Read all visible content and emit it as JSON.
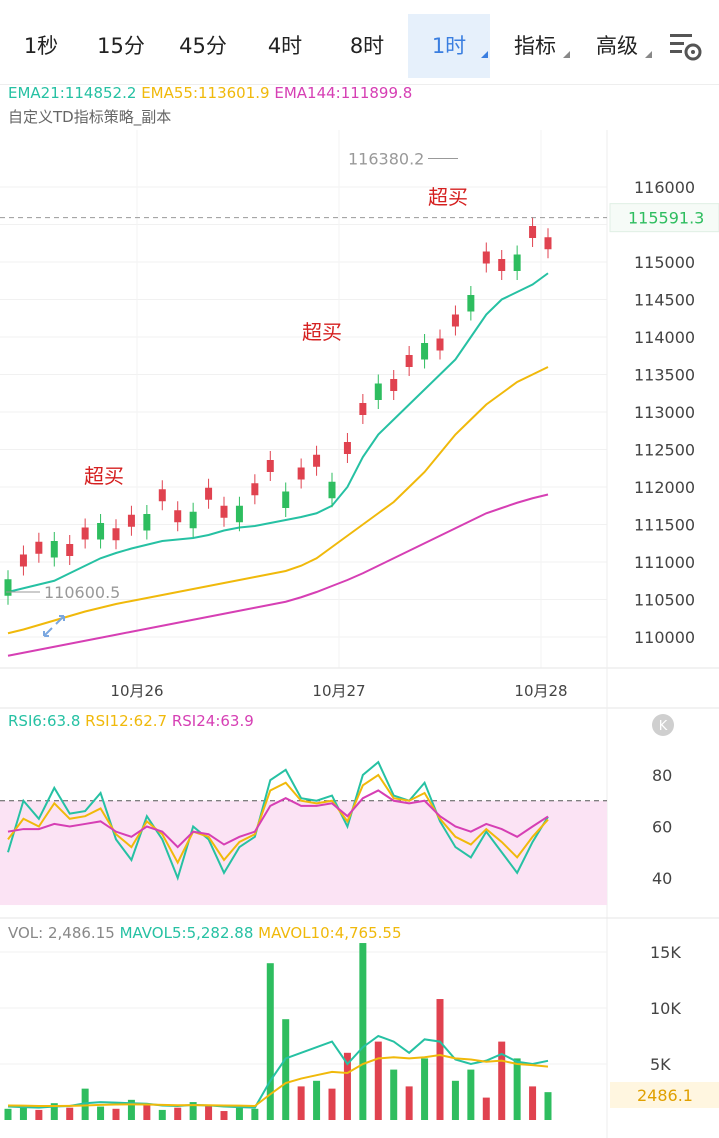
{
  "tabs": [
    {
      "label": "1秒",
      "active": false,
      "dropdown": false
    },
    {
      "label": "15分",
      "active": false,
      "dropdown": false
    },
    {
      "label": "45分",
      "active": false,
      "dropdown": false
    },
    {
      "label": "4时",
      "active": false,
      "dropdown": false
    },
    {
      "label": "8时",
      "active": false,
      "dropdown": false
    },
    {
      "label": "1时",
      "active": true,
      "dropdown": true
    },
    {
      "label": "指标",
      "active": false,
      "dropdown": true
    },
    {
      "label": "高级",
      "active": false,
      "dropdown": true
    }
  ],
  "settings_icon": "chart-settings-icon",
  "ema_legend": {
    "ema21": "EMA21:114852.2",
    "ema55": "EMA55:113601.9",
    "ema144": "EMA144:111899.8"
  },
  "strategy_label": "自定义TD指标策略_副本",
  "rsi_legend": {
    "rsi6": "RSI6:63.8",
    "rsi12": "RSI12:62.7",
    "rsi24": "RSI24:63.9"
  },
  "vol_legend": {
    "vol": "VOL: 2,486.15",
    "mavol5": "MAVOL5:5,282.88",
    "mavol10": "MAVOL10:4,765.55"
  },
  "colors": {
    "up": "#2ebd5f",
    "down": "#e0424f",
    "ema21": "#26c1a3",
    "ema55": "#f0b90b",
    "ema144": "#d63fb4",
    "rsi_band": "#fbe3f4",
    "last_price": "#2ebd5f"
  },
  "chart_data": [
    {
      "type": "candlestick",
      "title": "",
      "x_ticks": [
        "10月26",
        "10月27",
        "10月28"
      ],
      "y_ticks": [
        110000,
        110500,
        111000,
        111500,
        112000,
        112500,
        113000,
        113500,
        114000,
        114500,
        115000,
        115500,
        116000
      ],
      "ylim": [
        109900,
        116600
      ],
      "last_price": "115591.3",
      "high_marker": "116380.2",
      "low_marker": "110600.5",
      "annotations": [
        "超买",
        "超买",
        "超买"
      ],
      "series": [
        {
          "name": "EMA21",
          "values": [
            110600,
            110650,
            110700,
            110750,
            110850,
            110950,
            111050,
            111120,
            111180,
            111230,
            111280,
            111300,
            111320,
            111360,
            111420,
            111460,
            111480,
            111520,
            111560,
            111600,
            111650,
            111750,
            112000,
            112400,
            112700,
            112900,
            113100,
            113300,
            113500,
            113700,
            114000,
            114300,
            114500,
            114600,
            114700,
            114850
          ]
        },
        {
          "name": "EMA55",
          "values": [
            110050,
            110100,
            110160,
            110220,
            110280,
            110340,
            110390,
            110440,
            110480,
            110520,
            110560,
            110600,
            110640,
            110680,
            110720,
            110760,
            110800,
            110840,
            110880,
            110950,
            111050,
            111200,
            111350,
            111500,
            111650,
            111800,
            112000,
            112200,
            112450,
            112700,
            112900,
            113100,
            113250,
            113400,
            113500,
            113600
          ]
        },
        {
          "name": "EMA144",
          "values": [
            109750,
            109790,
            109830,
            109870,
            109910,
            109950,
            109990,
            110030,
            110070,
            110110,
            110150,
            110190,
            110230,
            110270,
            110310,
            110350,
            110390,
            110430,
            110470,
            110530,
            110600,
            110680,
            110760,
            110850,
            110950,
            111050,
            111150,
            111250,
            111350,
            111450,
            111550,
            111650,
            111720,
            111790,
            111850,
            111900
          ]
        }
      ]
    },
    {
      "type": "line",
      "title": "RSI",
      "y_ticks": [
        40,
        60,
        80
      ],
      "ylim": [
        29,
        89
      ],
      "overbought": 70,
      "series": [
        {
          "name": "RSI6",
          "values": [
            50,
            70,
            63,
            75,
            65,
            66,
            73,
            55,
            47,
            64,
            55,
            40,
            60,
            55,
            42,
            52,
            56,
            78,
            82,
            71,
            70,
            72,
            60,
            80,
            85,
            72,
            70,
            77,
            62,
            52,
            48,
            58,
            50,
            42,
            54,
            63.8
          ]
        },
        {
          "name": "RSI12",
          "values": [
            55,
            63,
            60,
            69,
            63,
            64,
            67,
            57,
            52,
            62,
            57,
            46,
            58,
            56,
            47,
            54,
            57,
            74,
            77,
            70,
            69,
            70,
            62,
            76,
            80,
            71,
            70,
            73,
            63,
            56,
            53,
            59,
            54,
            48,
            56,
            62.7
          ]
        },
        {
          "name": "RSI24",
          "values": [
            58,
            59,
            59,
            61,
            60,
            61,
            62,
            58,
            56,
            60,
            58,
            52,
            58,
            57,
            53,
            56,
            58,
            68,
            71,
            68,
            68,
            69,
            64,
            71,
            74,
            70,
            69,
            70,
            64,
            60,
            58,
            61,
            59,
            56,
            60,
            63.9
          ]
        }
      ]
    },
    {
      "type": "bar",
      "title": "VOL",
      "y_ticks": [
        "5K",
        "10K",
        "15K"
      ],
      "ylim": [
        0,
        16000
      ],
      "last_value": "2486.1",
      "values": [
        1000,
        1200,
        900,
        1500,
        1100,
        2800,
        1200,
        1000,
        1800,
        1400,
        900,
        1100,
        1600,
        1300,
        800,
        1200,
        1000,
        14000,
        9000,
        3000,
        3500,
        2800,
        6000,
        15800,
        7000,
        4500,
        3000,
        5500,
        10800,
        3500,
        4500,
        2000,
        7000,
        5500,
        3000,
        2486.15
      ],
      "up": [
        true,
        true,
        false,
        true,
        false,
        true,
        true,
        false,
        true,
        false,
        true,
        false,
        true,
        false,
        false,
        true,
        true,
        true,
        true,
        false,
        true,
        false,
        false,
        true,
        false,
        true,
        false,
        true,
        false,
        true,
        true,
        false,
        false,
        true,
        false,
        true
      ],
      "series": [
        {
          "name": "MAVOL5",
          "values": [
            1200,
            1150,
            1100,
            1200,
            1250,
            1500,
            1600,
            1550,
            1500,
            1450,
            1300,
            1250,
            1350,
            1300,
            1200,
            1150,
            1100,
            3500,
            5500,
            6000,
            6500,
            7000,
            5000,
            6500,
            7500,
            7000,
            6000,
            7200,
            7000,
            5400,
            5000,
            5300,
            5900,
            5200,
            5000,
            5282.88
          ]
        },
        {
          "name": "MAVOL10",
          "values": [
            1300,
            1280,
            1250,
            1250,
            1260,
            1300,
            1350,
            1380,
            1400,
            1380,
            1350,
            1320,
            1330,
            1320,
            1300,
            1280,
            1250,
            2300,
            3300,
            3700,
            4000,
            4300,
            4200,
            5000,
            5500,
            5600,
            5500,
            5600,
            5800,
            5500,
            5400,
            5200,
            5300,
            5000,
            4900,
            4765.55
          ]
        }
      ]
    }
  ]
}
